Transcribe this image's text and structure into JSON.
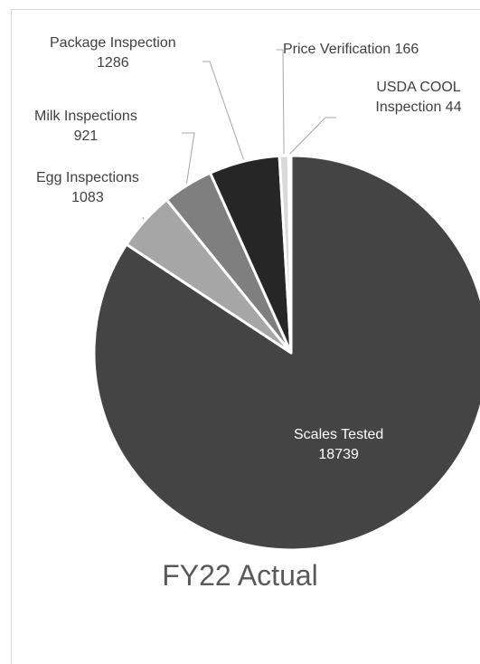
{
  "chart_data": {
    "type": "pie",
    "title": "FY22 Actual",
    "slices": [
      {
        "label": "Scales Tested",
        "value": 18739,
        "color": "#444444"
      },
      {
        "label": "Egg Inspections",
        "value": 1083,
        "color": "#a6a6a6"
      },
      {
        "label": "Milk Inspections",
        "value": 921,
        "color": "#7f7f7f"
      },
      {
        "label": "Package Inspection",
        "value": 1286,
        "color": "#262626"
      },
      {
        "label": "Price Verification",
        "value": 166,
        "color": "#d9d9d9"
      },
      {
        "label": "USDA COOL Inspection",
        "value": 44,
        "color": "#bfbfbf"
      }
    ]
  }
}
